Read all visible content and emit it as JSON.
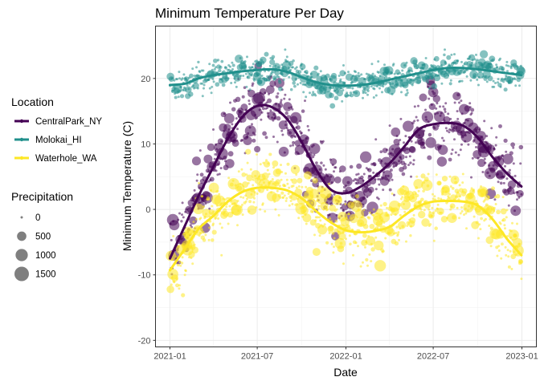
{
  "chart_data": {
    "type": "scatter",
    "title": "Minimum Temperature Per Day",
    "xlabel": "Date",
    "ylabel": "Minimum Temperature (C)",
    "xlim": [
      "2020-12-02",
      "2023-01-31"
    ],
    "ylim": [
      -21,
      28
    ],
    "x_ticks": [
      "2021-01",
      "2021-07",
      "2022-01",
      "2022-07",
      "2023-01"
    ],
    "y_ticks": [
      -20,
      -10,
      0,
      10,
      20
    ],
    "grid": true,
    "legend": {
      "color_title": "Location",
      "size_title": "Precipitation",
      "size_entries": [
        0,
        500,
        1000,
        1500
      ],
      "position": "left"
    },
    "series": [
      {
        "name": "CentralPark_NY",
        "color": "#440154",
        "smooth": [
          [
            "2021-01-01",
            -7.5
          ],
          [
            "2021-02-01",
            -2.5
          ],
          [
            "2021-03-01",
            2.0
          ],
          [
            "2021-04-01",
            6.5
          ],
          [
            "2021-05-01",
            10.8
          ],
          [
            "2021-06-01",
            14.2
          ],
          [
            "2021-07-01",
            15.8
          ],
          [
            "2021-08-01",
            15.6
          ],
          [
            "2021-09-01",
            13.8
          ],
          [
            "2021-10-01",
            10.3
          ],
          [
            "2021-11-01",
            6.0
          ],
          [
            "2021-12-01",
            3.0
          ],
          [
            "2022-01-01",
            2.5
          ],
          [
            "2022-02-01",
            3.5
          ],
          [
            "2022-03-01",
            5.0
          ],
          [
            "2022-04-01",
            7.0
          ],
          [
            "2022-05-01",
            9.5
          ],
          [
            "2022-06-01",
            12.2
          ],
          [
            "2022-07-01",
            13.0
          ],
          [
            "2022-08-01",
            13.2
          ],
          [
            "2022-09-01",
            12.8
          ],
          [
            "2022-10-01",
            11.0
          ],
          [
            "2022-11-01",
            8.0
          ],
          [
            "2022-12-01",
            5.5
          ],
          [
            "2022-12-31",
            3.5
          ]
        ],
        "points": []
      },
      {
        "name": "Molokai_HI",
        "color": "#21908C",
        "smooth": [
          [
            "2021-01-01",
            19.0
          ],
          [
            "2021-02-01",
            19.2
          ],
          [
            "2021-03-01",
            20.0
          ],
          [
            "2021-04-01",
            20.5
          ],
          [
            "2021-05-01",
            20.8
          ],
          [
            "2021-06-01",
            21.1
          ],
          [
            "2021-07-01",
            21.3
          ],
          [
            "2021-08-01",
            21.4
          ],
          [
            "2021-09-01",
            21.0
          ],
          [
            "2021-10-01",
            20.2
          ],
          [
            "2021-11-01",
            19.4
          ],
          [
            "2021-12-01",
            19.0
          ],
          [
            "2022-01-01",
            18.9
          ],
          [
            "2022-02-01",
            19.0
          ],
          [
            "2022-03-01",
            19.3
          ],
          [
            "2022-04-01",
            19.8
          ],
          [
            "2022-05-01",
            20.3
          ],
          [
            "2022-06-01",
            20.8
          ],
          [
            "2022-07-01",
            21.3
          ],
          [
            "2022-08-01",
            21.6
          ],
          [
            "2022-09-01",
            21.6
          ],
          [
            "2022-10-01",
            21.4
          ],
          [
            "2022-11-01",
            21.1
          ],
          [
            "2022-12-01",
            20.8
          ],
          [
            "2022-12-31",
            20.5
          ]
        ],
        "points": []
      },
      {
        "name": "Waterhole_WA",
        "color": "#FDE725",
        "smooth": [
          [
            "2021-01-01",
            -9.3
          ],
          [
            "2021-02-01",
            -6.0
          ],
          [
            "2021-03-01",
            -3.0
          ],
          [
            "2021-04-01",
            -1.0
          ],
          [
            "2021-05-01",
            1.2
          ],
          [
            "2021-06-01",
            2.7
          ],
          [
            "2021-07-01",
            3.3
          ],
          [
            "2021-08-01",
            3.3
          ],
          [
            "2021-09-01",
            2.9
          ],
          [
            "2021-10-01",
            1.7
          ],
          [
            "2021-11-01",
            -0.3
          ],
          [
            "2021-12-01",
            -2.0
          ],
          [
            "2022-01-01",
            -3.2
          ],
          [
            "2022-02-01",
            -3.5
          ],
          [
            "2022-03-01",
            -3.3
          ],
          [
            "2022-04-01",
            -2.7
          ],
          [
            "2022-05-01",
            -1.0
          ],
          [
            "2022-06-01",
            0.5
          ],
          [
            "2022-07-01",
            1.2
          ],
          [
            "2022-08-01",
            1.3
          ],
          [
            "2022-09-01",
            1.2
          ],
          [
            "2022-10-01",
            0.6
          ],
          [
            "2022-11-01",
            -1.5
          ],
          [
            "2022-12-01",
            -4.5
          ],
          [
            "2022-12-31",
            -7.0
          ]
        ],
        "points": []
      }
    ]
  }
}
